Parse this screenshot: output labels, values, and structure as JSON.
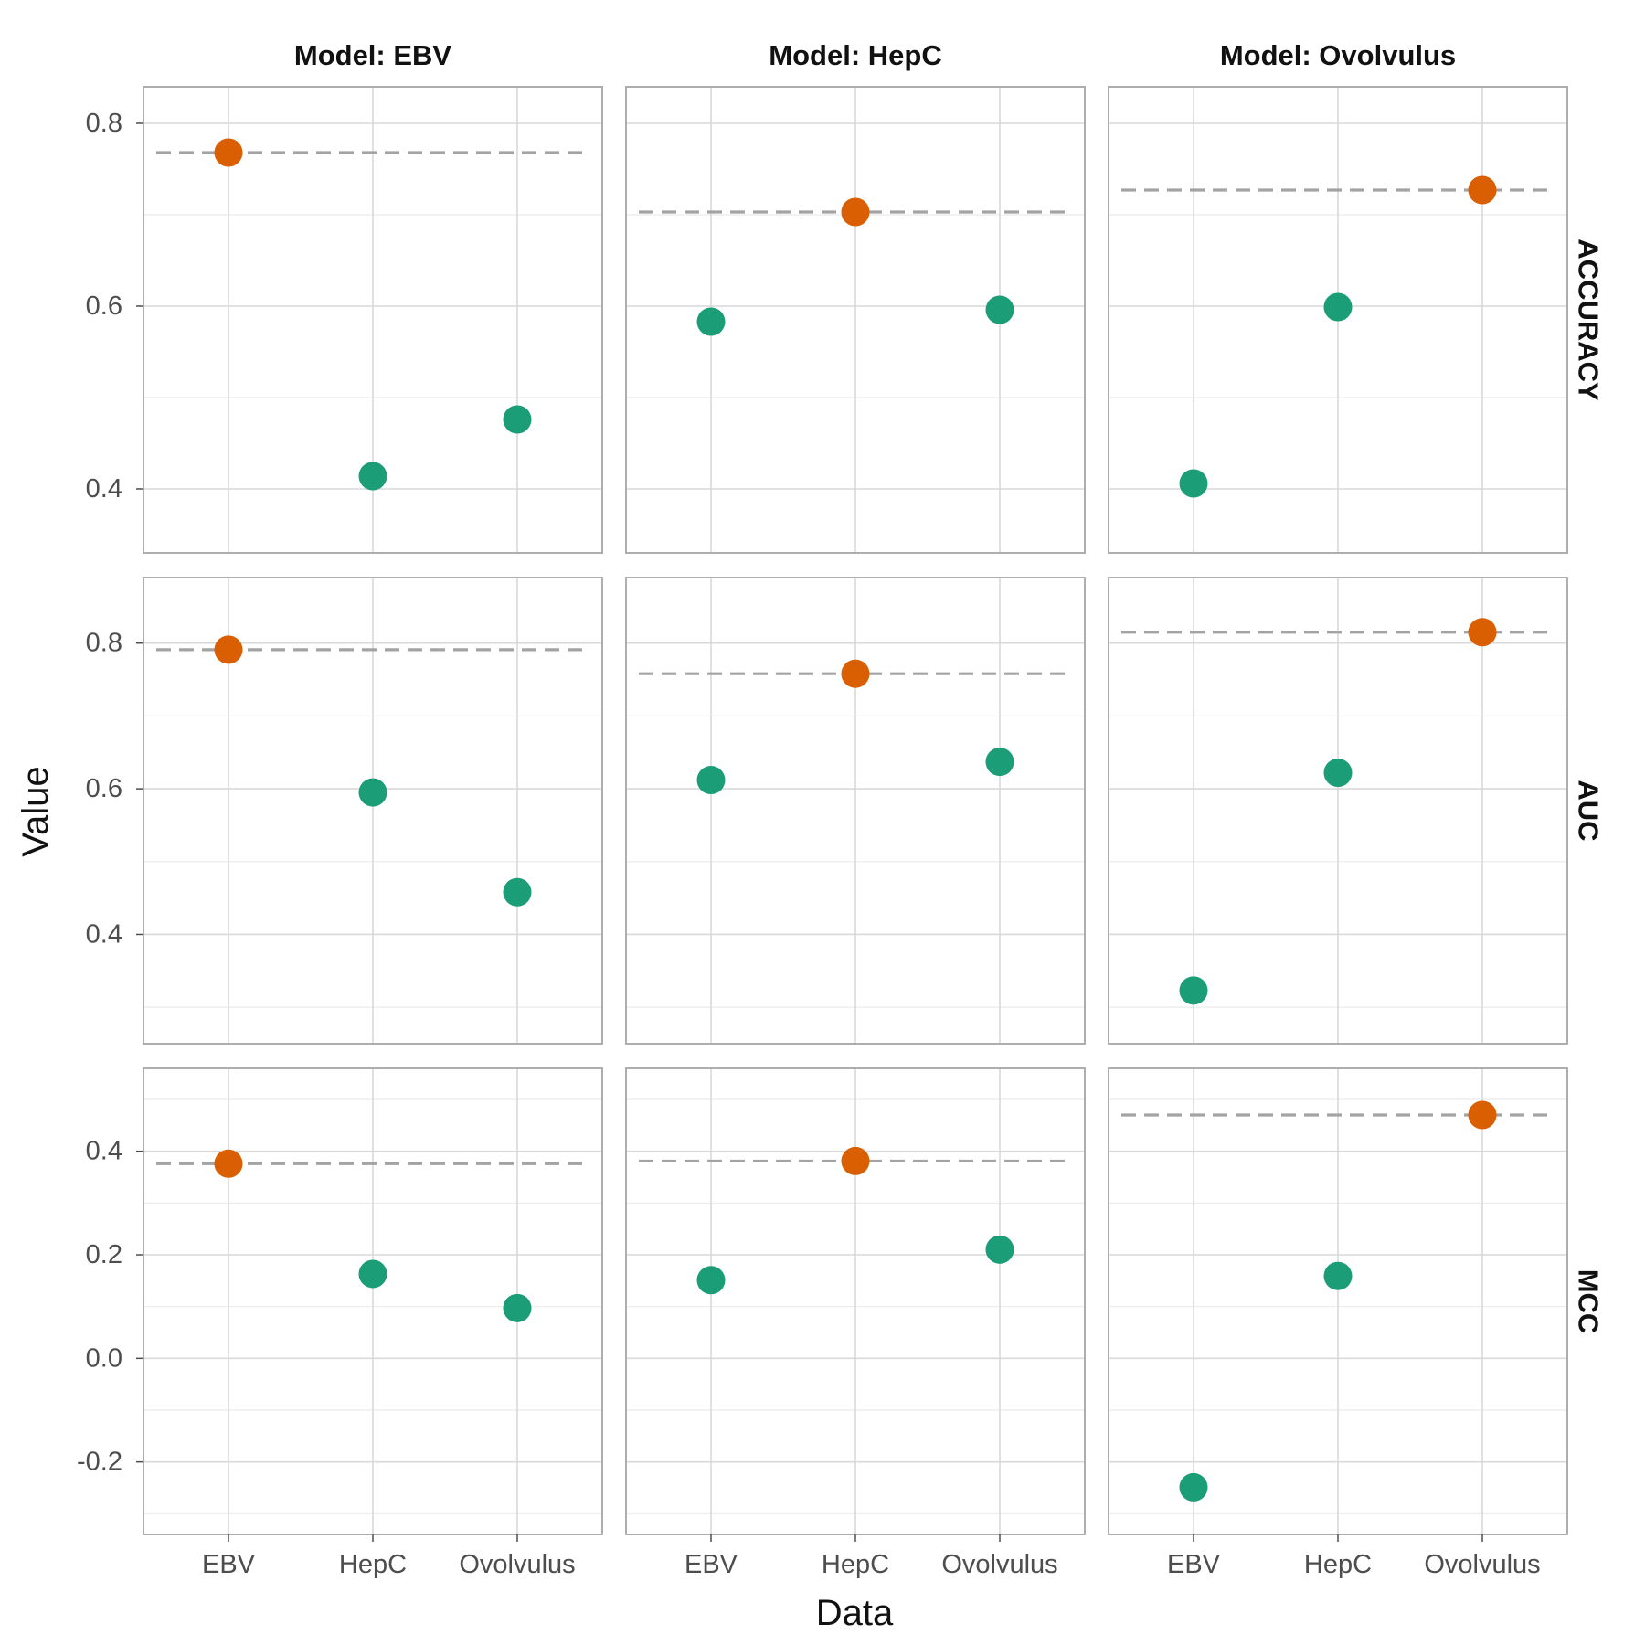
{
  "colors": {
    "self": "#d95f02",
    "other": "#1b9e77",
    "reference_line": "#a3a3a3",
    "grid": "#d9d9d9",
    "panel_border": "#a6a6a6"
  },
  "chart_data": {
    "type": "scatter",
    "xlabel": "Data",
    "ylabel": "Value",
    "categories": [
      "EBV",
      "HepC",
      "Ovolvulus"
    ],
    "columns": [
      "Model: EBV",
      "Model: HepC",
      "Model: Ovolvulus"
    ],
    "rows": [
      {
        "label": "ACCURACY",
        "ylim": [
          0.33,
          0.84
        ],
        "yticks": [
          0.4,
          0.6,
          0.8
        ],
        "ytick_labels": [
          "0.4",
          "0.6",
          "0.8"
        ],
        "values": [
          [
            0.768,
            0.414,
            0.476
          ],
          [
            0.583,
            0.703,
            0.596
          ],
          [
            0.406,
            0.599,
            0.727
          ]
        ],
        "reference": [
          0.768,
          0.703,
          0.727
        ]
      },
      {
        "label": "AUC",
        "ylim": [
          0.25,
          0.89
        ],
        "yticks": [
          0.4,
          0.6,
          0.8
        ],
        "ytick_labels": [
          "0.4",
          "0.6",
          "0.8"
        ],
        "values": [
          [
            0.791,
            0.595,
            0.458
          ],
          [
            0.612,
            0.758,
            0.637
          ],
          [
            0.323,
            0.622,
            0.815
          ]
        ],
        "reference": [
          0.791,
          0.758,
          0.815
        ]
      },
      {
        "label": "MCC",
        "ylim": [
          -0.34,
          0.56
        ],
        "yticks": [
          -0.2,
          0.0,
          0.2,
          0.4
        ],
        "ytick_labels": [
          "-0.2",
          "0.0",
          "0.2",
          "0.4"
        ],
        "values": [
          [
            0.376,
            0.163,
            0.097
          ],
          [
            0.151,
            0.381,
            0.21
          ],
          [
            -0.249,
            0.159,
            0.47
          ]
        ],
        "reference": [
          0.376,
          0.381,
          0.47
        ]
      }
    ]
  }
}
